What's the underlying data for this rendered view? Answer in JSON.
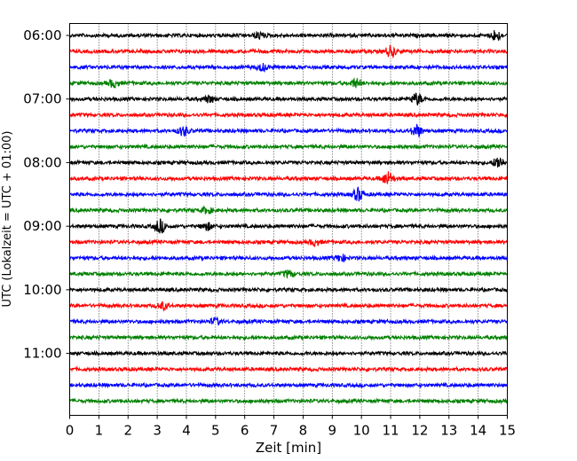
{
  "chart_data": {
    "type": "line",
    "title": "",
    "xlabel": "Zeit  [min]",
    "ylabel": "UTC (Lokalzeit = UTC + 01:00)",
    "xlim": [
      0,
      15
    ],
    "x_ticks": [
      0,
      1,
      2,
      3,
      4,
      5,
      6,
      7,
      8,
      9,
      10,
      11,
      12,
      13,
      14,
      15
    ],
    "x_tick_labels": [
      "0",
      "1",
      "2",
      "3",
      "4",
      "5",
      "6",
      "7",
      "8",
      "9",
      "10",
      "11",
      "12",
      "13",
      "14",
      "15"
    ],
    "y_tick_labels": [
      "06:00",
      "07:00",
      "08:00",
      "09:00",
      "10:00",
      "11:00"
    ],
    "y_tick_trace_index": [
      0,
      4,
      8,
      12,
      16,
      20
    ],
    "trace_minutes": 15,
    "trace_start_times": [
      "06:00",
      "06:15",
      "06:30",
      "06:45",
      "07:00",
      "07:15",
      "07:30",
      "07:45",
      "08:00",
      "08:15",
      "08:30",
      "08:45",
      "09:00",
      "09:15",
      "09:30",
      "09:45",
      "10:00",
      "10:15",
      "10:30",
      "10:45",
      "11:00",
      "11:15",
      "11:30",
      "11:45"
    ],
    "color_cycle": [
      "#000000",
      "#ff0000",
      "#0000ff",
      "#008000"
    ],
    "x_grid": true,
    "grid_style": "dotted",
    "events": [
      {
        "trace": 0,
        "minute": 14.6,
        "amp": 1.4
      },
      {
        "trace": 0,
        "minute": 6.5,
        "amp": 0.9
      },
      {
        "trace": 1,
        "minute": 11.0,
        "amp": 1.4
      },
      {
        "trace": 2,
        "minute": 6.6,
        "amp": 0.9
      },
      {
        "trace": 3,
        "minute": 1.5,
        "amp": 1.0
      },
      {
        "trace": 3,
        "minute": 9.8,
        "amp": 1.1
      },
      {
        "trace": 4,
        "minute": 11.9,
        "amp": 1.5
      },
      {
        "trace": 4,
        "minute": 4.8,
        "amp": 0.9
      },
      {
        "trace": 6,
        "minute": 3.9,
        "amp": 1.2
      },
      {
        "trace": 6,
        "minute": 11.9,
        "amp": 1.6
      },
      {
        "trace": 8,
        "minute": 14.7,
        "amp": 1.6
      },
      {
        "trace": 9,
        "minute": 10.9,
        "amp": 1.8
      },
      {
        "trace": 10,
        "minute": 9.9,
        "amp": 1.7
      },
      {
        "trace": 11,
        "minute": 4.7,
        "amp": 0.8
      },
      {
        "trace": 12,
        "minute": 3.1,
        "amp": 1.8
      },
      {
        "trace": 12,
        "minute": 4.7,
        "amp": 1.0
      },
      {
        "trace": 13,
        "minute": 8.4,
        "amp": 0.8
      },
      {
        "trace": 14,
        "minute": 9.3,
        "amp": 0.9
      },
      {
        "trace": 15,
        "minute": 7.5,
        "amp": 0.9
      },
      {
        "trace": 17,
        "minute": 3.2,
        "amp": 0.9
      },
      {
        "trace": 18,
        "minute": 5.0,
        "amp": 0.8
      }
    ]
  }
}
